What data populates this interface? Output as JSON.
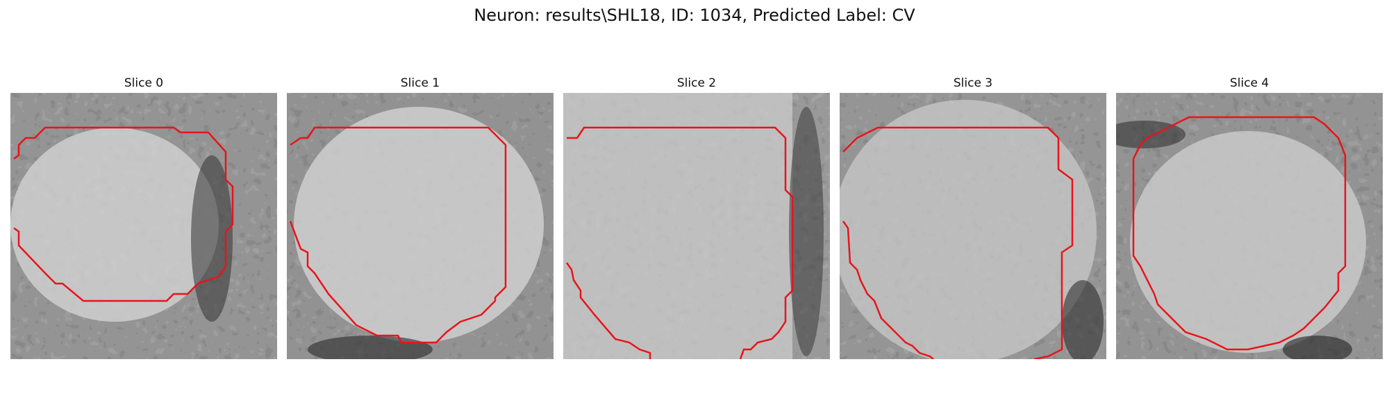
{
  "figure": {
    "title": "Neuron: results\\SHL18, ID: 1034, Predicted Label: CV"
  },
  "panels": [
    {
      "title": "Slice 0"
    },
    {
      "title": "Slice 1"
    },
    {
      "title": "Slice 2"
    },
    {
      "title": "Slice 3"
    },
    {
      "title": "Slice 4"
    }
  ],
  "colors": {
    "contour": "#e8141a",
    "background": "#ffffff"
  }
}
